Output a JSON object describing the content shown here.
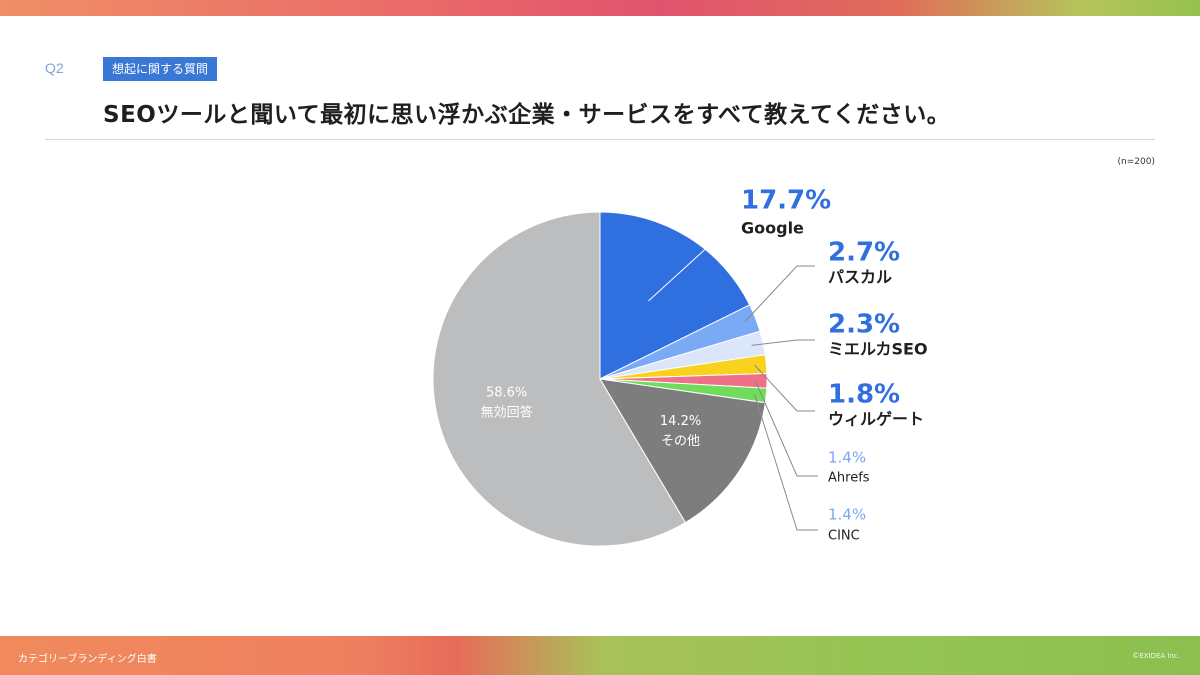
{
  "header": {
    "question_no": "Q2",
    "tag": "想起に関する質問",
    "title": "SEOツールと聞いて最初に思い浮かぶ企業・サービスをすべて教えてください。",
    "sample_size": "(n=200)"
  },
  "footer": {
    "left": "カテゴリーブランディング白書",
    "right": "©EXIDEA Inc."
  },
  "chart_data": {
    "type": "pie",
    "title": "SEOツールと聞いて最初に思い浮かぶ企業・サービスをすべて教えてください。",
    "start": "12 o'clock, clockwise",
    "slices": [
      {
        "name": "Google",
        "value": 17.7,
        "label": "17.7%",
        "color": "#2f6fe0"
      },
      {
        "name": "パスカル",
        "value": 2.7,
        "label": "2.7%",
        "color": "#7aa9f5"
      },
      {
        "name": "ミエルカSEO",
        "value": 2.3,
        "label": "2.3%",
        "color": "#dbe6fb"
      },
      {
        "name": "ウィルゲート",
        "value": 1.8,
        "label": "1.8%",
        "color": "#f8d21c"
      },
      {
        "name": "Ahrefs",
        "value": 1.4,
        "label": "1.4%",
        "color": "#f0708a"
      },
      {
        "name": "CINC",
        "value": 1.4,
        "label": "1.4%",
        "color": "#6fdc5c"
      },
      {
        "name": "その他",
        "value": 14.2,
        "label": "14.2%",
        "color": "#7d7d7d"
      },
      {
        "name": "無効回答",
        "value": 58.6,
        "label": "58.6%",
        "color": "#bcbdbf"
      }
    ]
  }
}
